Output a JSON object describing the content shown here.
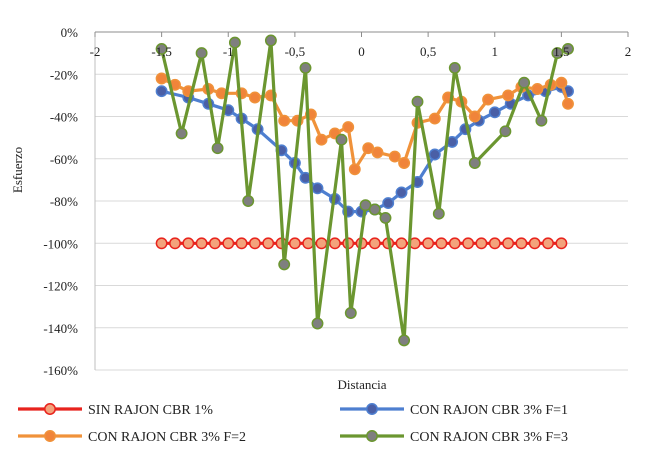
{
  "chart_data": {
    "type": "scatter",
    "xlabel": "Distancia",
    "ylabel": "Esfuerzo",
    "xlim": [
      -2,
      2
    ],
    "ylim": [
      -160,
      0
    ],
    "x_ticks": [
      -2,
      -1.5,
      -1,
      -0.5,
      0,
      0.5,
      1,
      1.5,
      2
    ],
    "x_tick_labels": [
      "-2",
      "-1,5",
      "-1",
      "-0,5",
      "0",
      "0,5",
      "1",
      "1,5",
      "2"
    ],
    "y_ticks": [
      0,
      -20,
      -40,
      -60,
      -80,
      -100,
      -120,
      -140,
      -160
    ],
    "y_tick_labels": [
      "0%",
      "-20%",
      "-40%",
      "-60%",
      "-80%",
      "-100%",
      "-120%",
      "-140%",
      "-160%"
    ],
    "grid": "horizontal",
    "legend_position": "bottom",
    "series": [
      {
        "name": "SIN RAJON CBR  1%",
        "color": "#e8231d",
        "marker_fill": "#f3a37c",
        "points": [
          [
            -1.5,
            -100
          ],
          [
            -1.4,
            -100
          ],
          [
            -1.3,
            -100
          ],
          [
            -1.2,
            -100
          ],
          [
            -1.1,
            -100
          ],
          [
            -1.0,
            -100
          ],
          [
            -0.9,
            -100
          ],
          [
            -0.8,
            -100
          ],
          [
            -0.7,
            -100
          ],
          [
            -0.6,
            -100
          ],
          [
            -0.5,
            -100
          ],
          [
            -0.4,
            -100
          ],
          [
            -0.3,
            -100
          ],
          [
            -0.2,
            -100
          ],
          [
            -0.1,
            -100
          ],
          [
            0.0,
            -100
          ],
          [
            0.1,
            -100
          ],
          [
            0.2,
            -100
          ],
          [
            0.3,
            -100
          ],
          [
            0.4,
            -100
          ],
          [
            0.5,
            -100
          ],
          [
            0.6,
            -100
          ],
          [
            0.7,
            -100
          ],
          [
            0.8,
            -100
          ],
          [
            0.9,
            -100
          ],
          [
            1.0,
            -100
          ],
          [
            1.1,
            -100
          ],
          [
            1.2,
            -100
          ],
          [
            1.3,
            -100
          ],
          [
            1.4,
            -100
          ],
          [
            1.5,
            -100
          ]
        ]
      },
      {
        "name": "CON RAJON CBR 3% F=1",
        "color": "#4e7fd0",
        "marker_fill": "#4a5fa6",
        "points": [
          [
            -1.5,
            -28
          ],
          [
            -1.3,
            -31
          ],
          [
            -1.15,
            -34
          ],
          [
            -1.0,
            -37
          ],
          [
            -0.9,
            -41
          ],
          [
            -0.78,
            -46
          ],
          [
            -0.6,
            -56
          ],
          [
            -0.5,
            -62
          ],
          [
            -0.42,
            -69
          ],
          [
            -0.33,
            -74
          ],
          [
            -0.2,
            -79
          ],
          [
            -0.1,
            -85
          ],
          [
            0.0,
            -85
          ],
          [
            0.1,
            -84
          ],
          [
            0.2,
            -81
          ],
          [
            0.3,
            -76
          ],
          [
            0.42,
            -71
          ],
          [
            0.55,
            -58
          ],
          [
            0.68,
            -52
          ],
          [
            0.78,
            -46
          ],
          [
            0.88,
            -42
          ],
          [
            1.0,
            -38
          ],
          [
            1.12,
            -34
          ],
          [
            1.25,
            -30
          ],
          [
            1.38,
            -28
          ],
          [
            1.5,
            -26
          ],
          [
            1.55,
            -28
          ]
        ]
      },
      {
        "name": "CON RAJON CBR 3% F=2",
        "color": "#f0923a",
        "marker_fill": "#f0843a",
        "points": [
          [
            -1.5,
            -22
          ],
          [
            -1.4,
            -25
          ],
          [
            -1.3,
            -28
          ],
          [
            -1.15,
            -27
          ],
          [
            -1.05,
            -29
          ],
          [
            -0.9,
            -29
          ],
          [
            -0.8,
            -31
          ],
          [
            -0.68,
            -30
          ],
          [
            -0.58,
            -42
          ],
          [
            -0.48,
            -42
          ],
          [
            -0.38,
            -39
          ],
          [
            -0.3,
            -51
          ],
          [
            -0.2,
            -48
          ],
          [
            -0.1,
            -45
          ],
          [
            -0.05,
            -65
          ],
          [
            0.05,
            -55
          ],
          [
            0.12,
            -57
          ],
          [
            0.25,
            -59
          ],
          [
            0.32,
            -62
          ],
          [
            0.42,
            -43
          ],
          [
            0.55,
            -41
          ],
          [
            0.65,
            -31
          ],
          [
            0.75,
            -33
          ],
          [
            0.85,
            -40
          ],
          [
            0.95,
            -32
          ],
          [
            1.1,
            -30
          ],
          [
            1.2,
            -26
          ],
          [
            1.32,
            -27
          ],
          [
            1.42,
            -25
          ],
          [
            1.5,
            -24
          ],
          [
            1.55,
            -34
          ]
        ]
      },
      {
        "name": "CON RAJON CBR 3% F=3",
        "color": "#6b9630",
        "marker_fill": "#7f7f7f",
        "points": [
          [
            -1.5,
            -8
          ],
          [
            -1.35,
            -48
          ],
          [
            -1.2,
            -10
          ],
          [
            -1.08,
            -55
          ],
          [
            -0.95,
            -5
          ],
          [
            -0.85,
            -80
          ],
          [
            -0.68,
            -4
          ],
          [
            -0.58,
            -110
          ],
          [
            -0.42,
            -17
          ],
          [
            -0.33,
            -138
          ],
          [
            -0.15,
            -51
          ],
          [
            -0.08,
            -133
          ],
          [
            0.03,
            -82
          ],
          [
            0.1,
            -84
          ],
          [
            0.18,
            -88
          ],
          [
            0.32,
            -146
          ],
          [
            0.42,
            -33
          ],
          [
            0.58,
            -86
          ],
          [
            0.7,
            -17
          ],
          [
            0.85,
            -62
          ],
          [
            1.08,
            -47
          ],
          [
            1.22,
            -24
          ],
          [
            1.35,
            -42
          ],
          [
            1.47,
            -10
          ],
          [
            1.55,
            -8
          ]
        ]
      }
    ]
  }
}
